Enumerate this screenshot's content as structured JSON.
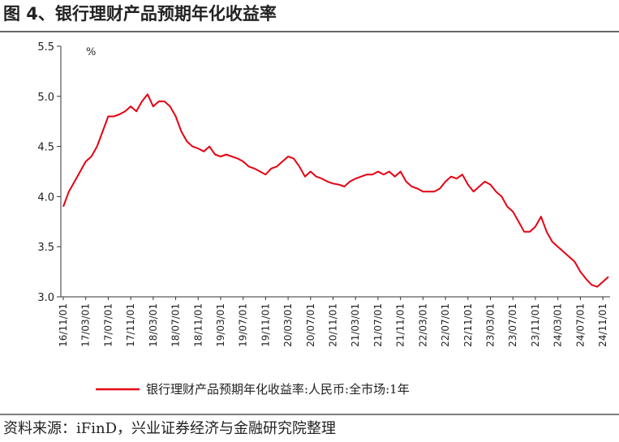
{
  "chart_data": {
    "type": "line",
    "title": "图 4、银行理财产品预期年化收益率",
    "unit_label": "%",
    "x": [
      "16/11/01",
      "16/12/01",
      "17/01/01",
      "17/02/01",
      "17/03/01",
      "17/04/01",
      "17/05/01",
      "17/06/01",
      "17/07/01",
      "17/08/01",
      "17/09/01",
      "17/10/01",
      "17/11/01",
      "17/12/01",
      "18/01/01",
      "18/02/01",
      "18/03/01",
      "18/04/01",
      "18/05/01",
      "18/06/01",
      "18/07/01",
      "18/08/01",
      "18/09/01",
      "18/10/01",
      "18/11/01",
      "18/12/01",
      "19/01/01",
      "19/02/01",
      "19/03/01",
      "19/04/01",
      "19/05/01",
      "19/06/01",
      "19/07/01",
      "19/08/01",
      "19/09/01",
      "19/10/01",
      "19/11/01",
      "19/12/01",
      "20/01/01",
      "20/02/01",
      "20/03/01",
      "20/04/01",
      "20/05/01",
      "20/06/01",
      "20/07/01",
      "20/08/01",
      "20/09/01",
      "20/10/01",
      "20/11/01",
      "20/12/01",
      "21/01/01",
      "21/02/01",
      "21/03/01",
      "21/04/01",
      "21/05/01",
      "21/06/01",
      "21/07/01",
      "21/08/01",
      "21/09/01",
      "21/10/01",
      "21/11/01",
      "21/12/01",
      "22/01/01",
      "22/02/01",
      "22/03/01",
      "22/04/01",
      "22/05/01",
      "22/06/01",
      "22/07/01",
      "22/08/01",
      "22/09/01",
      "22/10/01",
      "22/11/01",
      "22/12/01",
      "23/01/01",
      "23/02/01",
      "23/03/01",
      "23/04/01",
      "23/05/01",
      "23/06/01",
      "23/07/01",
      "23/08/01",
      "23/09/01",
      "23/10/01",
      "23/11/01",
      "23/12/01",
      "24/01/01",
      "24/02/01",
      "24/03/01",
      "24/04/01",
      "24/05/01",
      "24/06/01",
      "24/07/01",
      "24/08/01",
      "24/09/01",
      "24/10/01",
      "24/11/01",
      "24/12/01"
    ],
    "xticks": [
      "16/11/01",
      "17/03/01",
      "17/07/01",
      "17/11/01",
      "18/03/01",
      "18/07/01",
      "18/11/01",
      "19/03/01",
      "19/07/01",
      "19/11/01",
      "20/03/01",
      "20/07/01",
      "20/11/01",
      "21/03/01",
      "21/07/01",
      "21/11/01",
      "22/03/01",
      "22/07/01",
      "22/11/01",
      "23/03/01",
      "23/07/01",
      "23/11/01",
      "24/03/01",
      "24/07/01",
      "24/11/01"
    ],
    "series": [
      {
        "name": "银行理财产品预期年化收益率:人民币:全市场:1年",
        "color": "#e60012",
        "values": [
          3.9,
          4.05,
          4.15,
          4.25,
          4.35,
          4.4,
          4.5,
          4.65,
          4.8,
          4.8,
          4.82,
          4.85,
          4.9,
          4.85,
          4.95,
          5.02,
          4.9,
          4.95,
          4.95,
          4.9,
          4.8,
          4.65,
          4.55,
          4.5,
          4.48,
          4.45,
          4.5,
          4.42,
          4.4,
          4.42,
          4.4,
          4.38,
          4.35,
          4.3,
          4.28,
          4.25,
          4.22,
          4.28,
          4.3,
          4.35,
          4.4,
          4.38,
          4.3,
          4.2,
          4.25,
          4.2,
          4.18,
          4.15,
          4.13,
          4.12,
          4.1,
          4.15,
          4.18,
          4.2,
          4.22,
          4.22,
          4.25,
          4.22,
          4.25,
          4.2,
          4.25,
          4.15,
          4.1,
          4.08,
          4.05,
          4.05,
          4.05,
          4.08,
          4.15,
          4.2,
          4.18,
          4.22,
          4.12,
          4.05,
          4.1,
          4.15,
          4.12,
          4.05,
          4.0,
          3.9,
          3.85,
          3.75,
          3.65,
          3.65,
          3.7,
          3.8,
          3.65,
          3.55,
          3.5,
          3.45,
          3.4,
          3.35,
          3.25,
          3.18,
          3.12,
          3.1,
          3.15,
          3.2
        ]
      }
    ],
    "ylim": [
      3.0,
      5.5
    ],
    "yticks": [
      {
        "value": 3,
        "label": "3.0"
      },
      3.5,
      {
        "value": 4,
        "label": "4.0"
      },
      4.5,
      {
        "value": 5,
        "label": "5.0"
      },
      5.5
    ]
  },
  "source": "资料来源：iFinD，兴业证券经济与金融研究院整理"
}
